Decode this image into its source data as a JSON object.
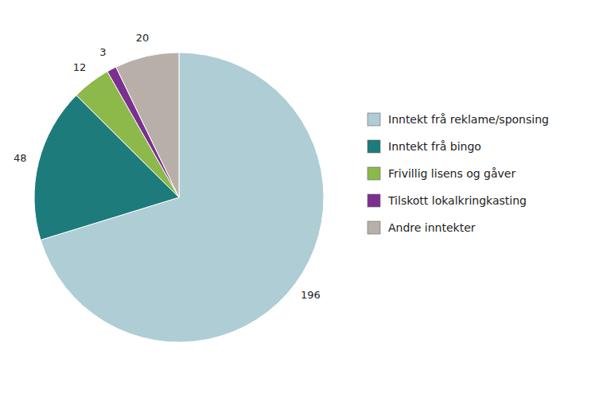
{
  "chart_data": {
    "type": "pie",
    "categories": [
      "Inntekt frå reklame/sponsing",
      "Inntekt frå bingo",
      "Frivillig lisens og gåver",
      "Tilskott lokalkringkasting",
      "Andre inntekter"
    ],
    "values": [
      196,
      48,
      12,
      3,
      20
    ],
    "colors": [
      "#aecdd5",
      "#1e7b7b",
      "#8db84a",
      "#7b3090",
      "#b8b0a8"
    ],
    "data_labels": true,
    "legend": "right"
  }
}
